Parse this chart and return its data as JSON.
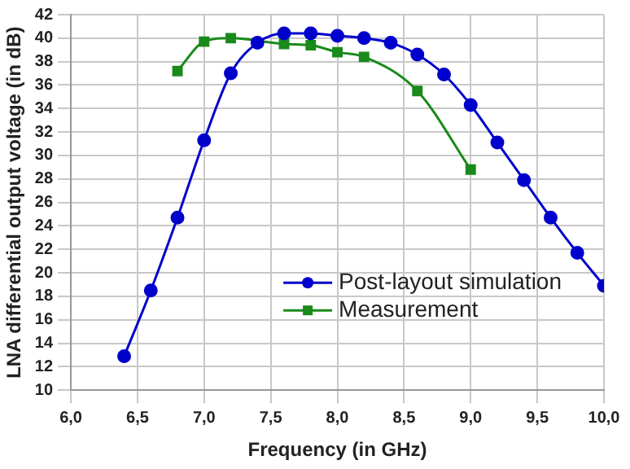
{
  "chart_data": {
    "type": "line",
    "xlabel": "Frequency (in GHz)",
    "ylabel": "LNA differential output voltage (in dB)",
    "xlim": [
      6,
      10
    ],
    "xticks": [
      {
        "value": 6,
        "label": "6,0"
      },
      {
        "value": 6.5,
        "label": "6,5"
      },
      {
        "value": 7,
        "label": "7,0"
      },
      {
        "value": 7.5,
        "label": "7,5"
      },
      {
        "value": 8,
        "label": "8,0"
      },
      {
        "value": 8.5,
        "label": "8,5"
      },
      {
        "value": 9,
        "label": "9,0"
      },
      {
        "value": 9.5,
        "label": "9,5"
      },
      {
        "value": 10,
        "label": "10,0"
      }
    ],
    "ylim": [
      10,
      42
    ],
    "yticks": [
      10,
      12,
      14,
      16,
      18,
      20,
      22,
      24,
      26,
      28,
      30,
      32,
      34,
      36,
      38,
      40,
      42
    ],
    "grid": true,
    "legend": "bottom right",
    "series": [
      {
        "name": "Post-layout simulation",
        "color": "#0000cc",
        "marker": "circle",
        "x": [
          6.4,
          6.6,
          6.8,
          7.0,
          7.2,
          7.4,
          7.6,
          7.8,
          8.0,
          8.2,
          8.4,
          8.6,
          8.8,
          9.0,
          9.2,
          9.4,
          9.6,
          9.8,
          10.0
        ],
        "values": [
          12.9,
          18.5,
          24.7,
          31.3,
          37.0,
          39.6,
          40.4,
          40.4,
          40.2,
          40.0,
          39.6,
          38.6,
          36.9,
          34.3,
          31.1,
          27.9,
          24.7,
          21.7,
          18.9
        ]
      },
      {
        "name": "Measurement",
        "color": "#1a8a1a",
        "marker": "square",
        "x": [
          6.8,
          7.0,
          7.2,
          7.6,
          7.8,
          8.0,
          8.2,
          8.6,
          9.0
        ],
        "values": [
          37.2,
          39.7,
          40.0,
          39.5,
          39.4,
          38.8,
          38.4,
          35.5,
          28.8
        ]
      }
    ]
  }
}
